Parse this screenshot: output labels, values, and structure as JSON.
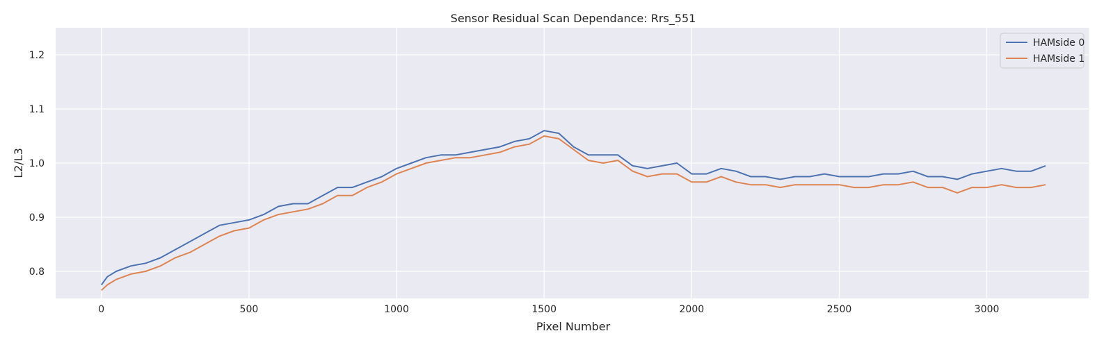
{
  "chart_data": {
    "type": "line",
    "title": "Sensor Residual Scan Dependance: Rrs_551",
    "xlabel": "Pixel Number",
    "ylabel": "L2/L3",
    "xlim": [
      -155,
      3345
    ],
    "ylim": [
      0.75,
      1.25
    ],
    "xticks": [
      0,
      500,
      1000,
      1500,
      2000,
      2500,
      3000
    ],
    "yticks": [
      0.8,
      0.9,
      1.0,
      1.1,
      1.2
    ],
    "xtick_labels": [
      "0",
      "500",
      "1000",
      "1500",
      "2000",
      "2500",
      "3000"
    ],
    "ytick_labels": [
      "0.8",
      "0.9",
      "1.0",
      "1.1",
      "1.2"
    ],
    "grid": true,
    "legend_position": "top-right",
    "background_color": "#eaeaf2",
    "grid_color": "#ffffff",
    "series": [
      {
        "name": "HAMside 0",
        "color": "#4c72b0",
        "x": [
          0,
          20,
          50,
          100,
          150,
          200,
          250,
          300,
          350,
          400,
          450,
          500,
          550,
          600,
          650,
          700,
          750,
          800,
          850,
          900,
          950,
          1000,
          1050,
          1100,
          1150,
          1200,
          1250,
          1300,
          1350,
          1400,
          1450,
          1500,
          1550,
          1600,
          1650,
          1700,
          1750,
          1800,
          1850,
          1900,
          1950,
          2000,
          2050,
          2100,
          2150,
          2200,
          2250,
          2300,
          2350,
          2400,
          2450,
          2500,
          2550,
          2600,
          2650,
          2700,
          2750,
          2800,
          2850,
          2900,
          2950,
          3000,
          3050,
          3100,
          3150,
          3199
        ],
        "y": [
          0.775,
          0.79,
          0.8,
          0.81,
          0.815,
          0.825,
          0.84,
          0.855,
          0.87,
          0.885,
          0.89,
          0.895,
          0.905,
          0.92,
          0.925,
          0.925,
          0.94,
          0.955,
          0.955,
          0.965,
          0.975,
          0.99,
          1.0,
          1.01,
          1.015,
          1.015,
          1.02,
          1.025,
          1.03,
          1.04,
          1.045,
          1.06,
          1.055,
          1.03,
          1.015,
          1.015,
          1.015,
          0.995,
          0.99,
          0.995,
          1.0,
          0.98,
          0.98,
          0.99,
          0.985,
          0.975,
          0.975,
          0.97,
          0.975,
          0.975,
          0.98,
          0.975,
          0.975,
          0.975,
          0.98,
          0.98,
          0.985,
          0.975,
          0.975,
          0.97,
          0.98,
          0.985,
          0.99,
          0.985,
          0.985,
          0.995
        ]
      },
      {
        "name": "HAMside 1",
        "color": "#dd8452",
        "x": [
          0,
          20,
          50,
          100,
          150,
          200,
          250,
          300,
          350,
          400,
          450,
          500,
          550,
          600,
          650,
          700,
          750,
          800,
          850,
          900,
          950,
          1000,
          1050,
          1100,
          1150,
          1200,
          1250,
          1300,
          1350,
          1400,
          1450,
          1500,
          1550,
          1600,
          1650,
          1700,
          1750,
          1800,
          1850,
          1900,
          1950,
          2000,
          2050,
          2100,
          2150,
          2200,
          2250,
          2300,
          2350,
          2400,
          2450,
          2500,
          2550,
          2600,
          2650,
          2700,
          2750,
          2800,
          2850,
          2900,
          2950,
          3000,
          3050,
          3100,
          3150,
          3199
        ],
        "y": [
          0.765,
          0.775,
          0.785,
          0.795,
          0.8,
          0.81,
          0.825,
          0.835,
          0.85,
          0.865,
          0.875,
          0.88,
          0.895,
          0.905,
          0.91,
          0.915,
          0.925,
          0.94,
          0.94,
          0.955,
          0.965,
          0.98,
          0.99,
          1.0,
          1.005,
          1.01,
          1.01,
          1.015,
          1.02,
          1.03,
          1.035,
          1.05,
          1.045,
          1.025,
          1.005,
          1.0,
          1.005,
          0.985,
          0.975,
          0.98,
          0.98,
          0.965,
          0.965,
          0.975,
          0.965,
          0.96,
          0.96,
          0.955,
          0.96,
          0.96,
          0.96,
          0.96,
          0.955,
          0.955,
          0.96,
          0.96,
          0.965,
          0.955,
          0.955,
          0.945,
          0.955,
          0.955,
          0.96,
          0.955,
          0.955,
          0.96
        ]
      }
    ]
  }
}
